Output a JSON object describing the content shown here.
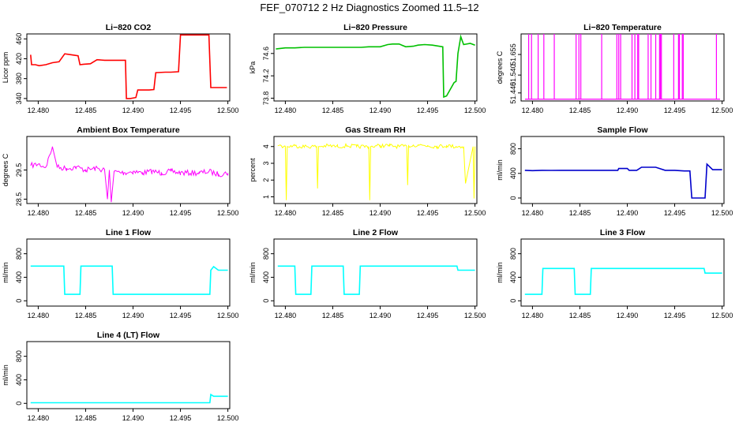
{
  "figure": {
    "title": "FEF_070712  2 Hz Diagnostics Zoomed 11.5–12"
  },
  "chart_data": [
    {
      "type": "line",
      "title": "Li−820 CO2",
      "ylabel": "Licor ppm",
      "color": "#ff0000",
      "xlim": [
        12.4788,
        12.5002
      ],
      "ylim": [
        335,
        470
      ],
      "xticks": [
        12.48,
        12.485,
        12.49,
        12.495,
        12.5
      ],
      "xtick_labels": [
        "12.480",
        "12.485",
        "12.490",
        "12.495",
        "12.500"
      ],
      "yticks": [
        340,
        380,
        420,
        460
      ],
      "ytick_labels": [
        "340",
        "380",
        "420",
        "460"
      ],
      "series": [
        {
          "x": [
            12.4792,
            12.4793,
            12.4797,
            12.4801,
            12.4808,
            12.4815,
            12.4822,
            12.4828,
            12.4835,
            12.4842,
            12.4844,
            12.4848,
            12.4855,
            12.4862,
            12.487,
            12.488,
            12.4892,
            12.4893,
            12.4897,
            12.4903,
            12.4905,
            12.4911,
            12.4917,
            12.4922,
            12.4924,
            12.4934,
            12.494,
            12.4948,
            12.495,
            12.496,
            12.497,
            12.498,
            12.4982,
            12.499,
            12.4999
          ],
          "y": [
            428,
            408,
            408,
            406,
            408,
            412,
            414,
            430,
            428,
            426,
            408,
            409,
            410,
            418,
            417,
            417,
            417,
            340,
            340,
            342,
            357,
            357,
            357,
            358,
            392,
            393,
            393,
            394,
            468,
            468,
            468,
            468,
            362,
            362,
            362
          ],
          "style": "step"
        }
      ]
    },
    {
      "type": "line",
      "title": "Li−820 Pressure",
      "ylabel": "kPa",
      "color": "#00c000",
      "xlim": [
        12.4788,
        12.5002
      ],
      "ylim": [
        73.75,
        74.95
      ],
      "xticks": [
        12.48,
        12.485,
        12.49,
        12.495,
        12.5
      ],
      "xtick_labels": [
        "12.480",
        "12.485",
        "12.490",
        "12.495",
        "12.500"
      ],
      "yticks": [
        73.8,
        74.2,
        74.6
      ],
      "ytick_labels": [
        "73.8",
        "74.2",
        "74.6"
      ],
      "series": [
        {
          "x": [
            12.479,
            12.48,
            12.481,
            12.482,
            12.483,
            12.484,
            12.485,
            12.486,
            12.487,
            12.488,
            12.4888,
            12.49,
            12.4908,
            12.4913,
            12.492,
            12.4927,
            12.4935,
            12.494,
            12.4947,
            12.4955,
            12.4962,
            12.4966,
            12.4967,
            12.497,
            12.4978,
            12.498,
            12.4982,
            12.4985,
            12.4988,
            12.4995,
            12.5
          ],
          "y": [
            74.68,
            74.7,
            74.7,
            74.71,
            74.71,
            74.71,
            74.71,
            74.71,
            74.71,
            74.71,
            74.72,
            74.72,
            74.76,
            74.77,
            74.77,
            74.72,
            74.73,
            74.75,
            74.76,
            74.75,
            74.73,
            74.72,
            73.82,
            73.84,
            74.08,
            74.1,
            74.6,
            74.9,
            74.76,
            74.78,
            74.75
          ]
        }
      ]
    },
    {
      "type": "line",
      "title": "Li−820 Temperature",
      "ylabel": "degrees C",
      "color": "#ff00ff",
      "xlim": [
        12.4788,
        12.5002
      ],
      "ylim": [
        51.395,
        51.77
      ],
      "xticks": [
        12.48,
        12.485,
        12.49,
        12.495,
        12.5
      ],
      "xtick_labels": [
        "12.480",
        "12.485",
        "12.490",
        "12.495",
        "12.500"
      ],
      "yticks": [
        51.44,
        51.54,
        51.655
      ],
      "ytick_labels": [
        "51.440",
        "51.540",
        "51.655"
      ],
      "baseline": 51.405,
      "spikes": [
        12.4796,
        12.4799,
        12.4806,
        12.4812,
        12.4823,
        12.4846,
        12.4849,
        12.4851,
        12.4873,
        12.4889,
        12.4891,
        12.4893,
        12.4905,
        12.4908,
        12.4911,
        12.4912,
        12.4922,
        12.4925,
        12.493,
        12.4934,
        12.4935,
        12.4936,
        12.4949,
        12.4954,
        12.4955,
        12.4958,
        12.4959,
        12.4994
      ],
      "spike_top": 51.77
    },
    {
      "type": "line",
      "title": "Ambient Box Temperature",
      "ylabel": "degrees C",
      "color": "#ff00ff",
      "xlim": [
        12.4788,
        12.5002
      ],
      "ylim": [
        28.35,
        30.65
      ],
      "xticks": [
        12.48,
        12.485,
        12.49,
        12.495,
        12.5
      ],
      "xtick_labels": [
        "12.480",
        "12.485",
        "12.490",
        "12.495",
        "12.500"
      ],
      "yticks": [
        28.5,
        29.5
      ],
      "ytick_labels": [
        "28.5",
        "29.5"
      ],
      "series": [
        {
          "x": [
            12.4792,
            12.48,
            12.4808,
            12.4815,
            12.482,
            12.483,
            12.484,
            12.485,
            12.486,
            12.487,
            12.4873,
            12.4875,
            12.4877,
            12.488,
            12.489,
            12.49,
            12.491,
            12.492,
            12.493,
            12.494,
            12.495,
            12.496,
            12.497,
            12.498,
            12.499,
            12.5
          ],
          "y": [
            29.65,
            29.7,
            29.6,
            30.3,
            29.6,
            29.55,
            29.6,
            29.5,
            29.55,
            29.5,
            28.5,
            29.5,
            28.4,
            29.45,
            29.4,
            29.45,
            29.4,
            29.45,
            29.4,
            29.45,
            29.4,
            29.4,
            29.4,
            29.45,
            29.35,
            29.4
          ]
        }
      ]
    },
    {
      "type": "line",
      "title": "Gas Stream RH",
      "ylabel": "percent",
      "color": "#ffff00",
      "xlim": [
        12.4788,
        12.5002
      ],
      "ylim": [
        0.6,
        4.6
      ],
      "xticks": [
        12.48,
        12.485,
        12.49,
        12.495,
        12.5
      ],
      "xtick_labels": [
        "12.480",
        "12.485",
        "12.490",
        "12.495",
        "12.500"
      ],
      "yticks": [
        1,
        2,
        3,
        4
      ],
      "ytick_labels": [
        "1",
        "2",
        "3",
        "4"
      ],
      "series": [
        {
          "x": [
            12.4792,
            12.48,
            12.4801,
            12.4802,
            12.481,
            12.482,
            12.4833,
            12.4834,
            12.4835,
            12.4845,
            12.4855,
            12.4865,
            12.4875,
            12.4888,
            12.4889,
            12.489,
            12.49,
            12.491,
            12.492,
            12.4928,
            12.4929,
            12.493,
            12.494,
            12.495,
            12.496,
            12.497,
            12.498,
            12.4988,
            12.499,
            12.4998,
            12.4999,
            12.5
          ],
          "y": [
            4.05,
            4.0,
            0.8,
            4.0,
            4.05,
            4.0,
            4.0,
            1.5,
            4.0,
            4.05,
            4.0,
            4.05,
            4.0,
            4.0,
            0.8,
            4.0,
            4.05,
            4.05,
            4.0,
            4.0,
            1.7,
            4.05,
            4.1,
            4.05,
            4.0,
            4.05,
            4.0,
            4.0,
            1.8,
            4.0,
            0.9,
            4.0
          ]
        }
      ]
    },
    {
      "type": "line",
      "title": "Sample Flow",
      "ylabel": "ml/min",
      "color": "#0000cc",
      "xlim": [
        12.4788,
        12.5002
      ],
      "ylim": [
        -90,
        1000
      ],
      "xticks": [
        12.48,
        12.485,
        12.49,
        12.495,
        12.5
      ],
      "xtick_labels": [
        "12.480",
        "12.485",
        "12.490",
        "12.495",
        "12.500"
      ],
      "yticks": [
        0,
        400,
        800
      ],
      "ytick_labels": [
        "0",
        "400",
        "800"
      ],
      "series": [
        {
          "x": [
            12.4792,
            12.48,
            12.481,
            12.482,
            12.483,
            12.484,
            12.485,
            12.486,
            12.487,
            12.488,
            12.489,
            12.4891,
            12.49,
            12.4902,
            12.491,
            12.4915,
            12.493,
            12.494,
            12.495,
            12.496,
            12.4966,
            12.4968,
            12.4975,
            12.4982,
            12.4984,
            12.499,
            12.5
          ],
          "y": [
            450,
            445,
            450,
            448,
            450,
            450,
            450,
            450,
            450,
            450,
            450,
            480,
            480,
            450,
            450,
            500,
            500,
            450,
            450,
            440,
            440,
            0,
            0,
            0,
            550,
            460,
            460
          ]
        }
      ]
    },
    {
      "type": "line",
      "title": "Line 1 Flow",
      "ylabel": "ml/min",
      "color": "#00ffff",
      "xlim": [
        12.4788,
        12.5002
      ],
      "ylim": [
        -90,
        1050
      ],
      "xticks": [
        12.48,
        12.485,
        12.49,
        12.495,
        12.5
      ],
      "xtick_labels": [
        "12.480",
        "12.485",
        "12.490",
        "12.495",
        "12.500"
      ],
      "yticks": [
        0,
        400,
        800
      ],
      "ytick_labels": [
        "0",
        "400",
        "800"
      ],
      "series": [
        {
          "x": [
            12.4792,
            12.4827,
            12.4828,
            12.4844,
            12.4845,
            12.4878,
            12.4879,
            12.4981,
            12.4982,
            12.4985,
            12.499,
            12.5
          ],
          "y": [
            590,
            590,
            110,
            110,
            590,
            590,
            110,
            110,
            520,
            580,
            520,
            520
          ],
          "style": "step"
        }
      ]
    },
    {
      "type": "line",
      "title": "Line 2 Flow",
      "ylabel": "ml/min",
      "color": "#00ffff",
      "xlim": [
        12.4788,
        12.5002
      ],
      "ylim": [
        -90,
        1050
      ],
      "xticks": [
        12.48,
        12.485,
        12.49,
        12.495,
        12.5
      ],
      "xtick_labels": [
        "12.480",
        "12.485",
        "12.490",
        "12.495",
        "12.500"
      ],
      "yticks": [
        0,
        400,
        800
      ],
      "ytick_labels": [
        "0",
        "400",
        "800"
      ],
      "series": [
        {
          "x": [
            12.4792,
            12.481,
            12.4811,
            12.4827,
            12.4828,
            12.4861,
            12.4862,
            12.4878,
            12.4879,
            12.4981,
            12.4982,
            12.5
          ],
          "y": [
            590,
            590,
            110,
            110,
            590,
            590,
            110,
            110,
            590,
            590,
            520,
            520
          ],
          "style": "step"
        }
      ]
    },
    {
      "type": "line",
      "title": "Line 3 Flow",
      "ylabel": "ml/min",
      "color": "#00ffff",
      "xlim": [
        12.4788,
        12.5002
      ],
      "ylim": [
        -90,
        1050
      ],
      "xticks": [
        12.48,
        12.485,
        12.49,
        12.495,
        12.5
      ],
      "xtick_labels": [
        "12.480",
        "12.485",
        "12.490",
        "12.495",
        "12.500"
      ],
      "yticks": [
        0,
        400,
        800
      ],
      "ytick_labels": [
        "0",
        "400",
        "800"
      ],
      "series": [
        {
          "x": [
            12.4792,
            12.481,
            12.4811,
            12.4844,
            12.4845,
            12.4861,
            12.4862,
            12.4981,
            12.4982,
            12.5
          ],
          "y": [
            110,
            110,
            550,
            550,
            110,
            110,
            550,
            550,
            470,
            470
          ],
          "style": "step"
        }
      ]
    },
    {
      "type": "line",
      "title": "Line 4 (LT) Flow",
      "ylabel": "ml/min",
      "color": "#00ffff",
      "xlim": [
        12.4788,
        12.5002
      ],
      "ylim": [
        -90,
        1050
      ],
      "xticks": [
        12.48,
        12.485,
        12.49,
        12.495,
        12.5
      ],
      "xtick_labels": [
        "12.480",
        "12.485",
        "12.490",
        "12.495",
        "12.500"
      ],
      "yticks": [
        0,
        400,
        800
      ],
      "ytick_labels": [
        "0",
        "400",
        "800"
      ],
      "series": [
        {
          "x": [
            12.4792,
            12.4981,
            12.4982,
            12.4985,
            12.5
          ],
          "y": [
            10,
            10,
            150,
            120,
            120
          ],
          "style": "step"
        }
      ]
    }
  ]
}
